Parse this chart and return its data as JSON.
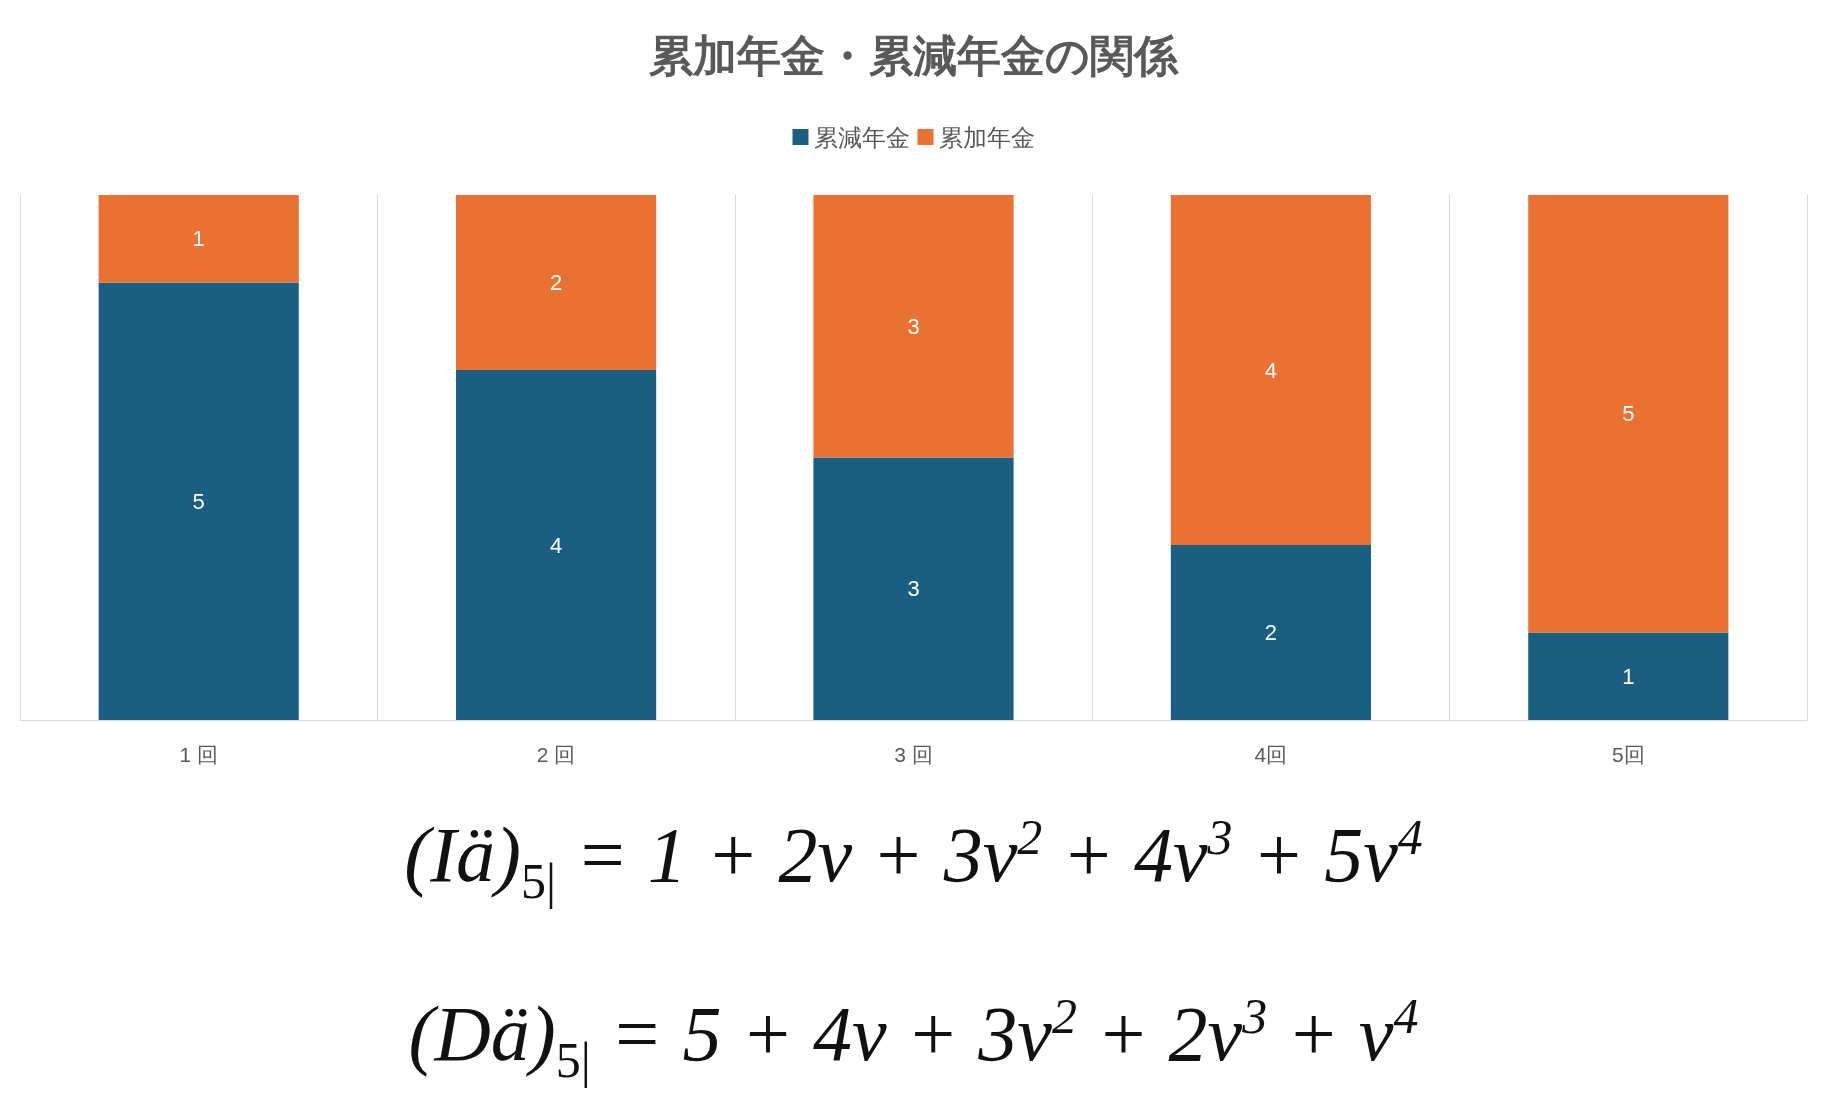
{
  "chart_data": {
    "type": "bar",
    "title": "累加年金・累減年金の関係",
    "categories": [
      "1 回",
      "2 回",
      "3 回",
      "4回",
      "5回"
    ],
    "series": [
      {
        "name": "累減年金",
        "color": "#1a5f82",
        "values": [
          5,
          4,
          3,
          2,
          1
        ]
      },
      {
        "name": "累加年金",
        "color": "#e97132",
        "values": [
          1,
          2,
          3,
          4,
          5
        ]
      }
    ],
    "stacked": true,
    "data_labels": true,
    "legend": "top",
    "grid": "x",
    "tick_labels": "x",
    "annotations": [
      "(Iä)$_{5|}$ = 1 + 2v + 3v$^{2}$ + 4v$^{3}$ + 5v$^{4}$",
      "(Dä)$_{5|}$ = 5 + 4v + 3v$^{2}$ + 2v$^{3}$ + v$^{4}$"
    ]
  }
}
